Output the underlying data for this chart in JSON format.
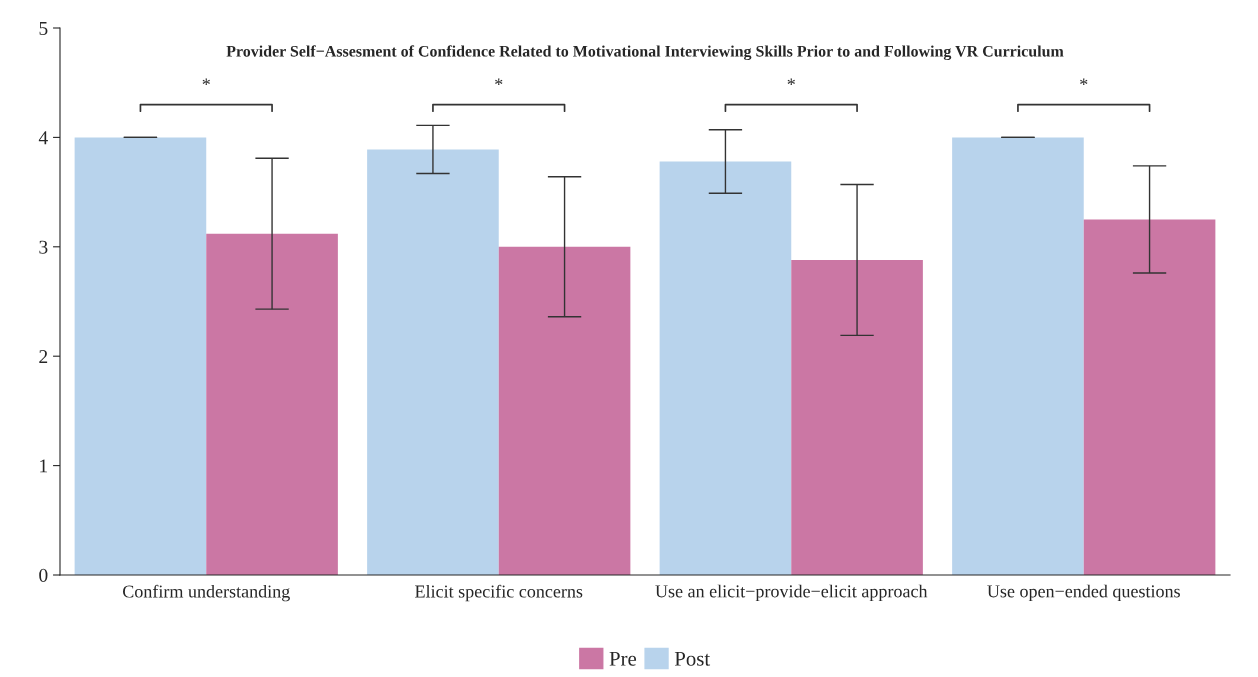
{
  "chart_data": {
    "type": "bar",
    "title": "Provider Self−Assesment of Confidence Related to Motivational Interviewing Skills Prior to and Following VR Curriculum",
    "categories": [
      "Confirm understanding",
      "Elicit specific concerns",
      "Use an elicit−provide−elicit approach",
      "Use open−ended questions"
    ],
    "series": [
      {
        "name": "Post",
        "color": "#b8d3ec",
        "values": [
          4.0,
          3.89,
          3.78,
          4.0
        ],
        "errors": [
          0,
          0.22,
          0.29,
          0
        ]
      },
      {
        "name": "Pre",
        "color": "#cb77a4",
        "values": [
          3.12,
          3.0,
          2.88,
          3.25
        ],
        "errors": [
          0.69,
          0.64,
          0.69,
          0.49
        ]
      }
    ],
    "ylim": [
      0,
      5
    ],
    "yticks": [
      0,
      1,
      2,
      3,
      4,
      5
    ],
    "grid": false,
    "legend": "bottom",
    "annotations": [
      "*",
      "*",
      "*",
      "*"
    ]
  }
}
